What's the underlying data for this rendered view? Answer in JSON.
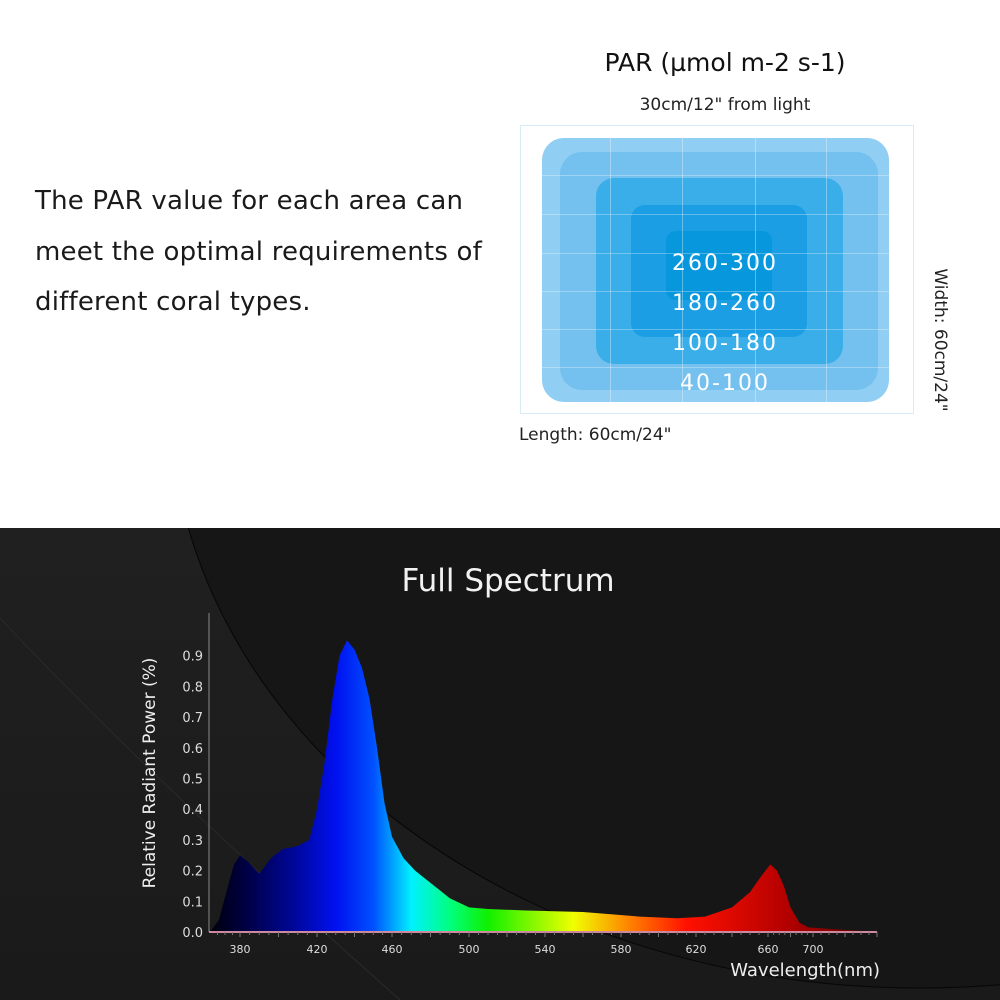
{
  "intro": {
    "lines": [
      "The PAR value for each area can",
      "meet the optimal requirements of",
      "different coral types."
    ]
  },
  "par": {
    "title": "PAR (µmol m-2 s-1)",
    "subtitle": "30cm/12\" from light",
    "zones": [
      {
        "range": "260-300",
        "color": "#0797dd"
      },
      {
        "range": "180-260",
        "color": "#1b9ee3"
      },
      {
        "range": "100-180",
        "color": "#3aaee8"
      },
      {
        "range": "40-100",
        "color": "#74c0ee"
      }
    ],
    "outer_color": "#91cef3",
    "length_label": "Length: 60cm/24\"",
    "width_label": "Width: 60cm/24\""
  },
  "chart_data": {
    "type": "area",
    "title": "Full Spectrum",
    "xlabel": "Wavelength(nm)",
    "ylabel": "Relative Radiant Power (%)",
    "xlim": [
      360,
      740
    ],
    "ylim": [
      0,
      1.0
    ],
    "x_ticks": [
      "380",
      "420",
      "460",
      "500",
      "540",
      "580",
      "620",
      "660",
      "700"
    ],
    "y_ticks": [
      "0.0",
      "0.1",
      "0.2",
      "0.3",
      "0.4",
      "0.5",
      "0.6",
      "0.7",
      "0.8",
      "0.9"
    ],
    "grid": false,
    "x": [
      360,
      366,
      372,
      376,
      380,
      384,
      390,
      396,
      402,
      410,
      416,
      420,
      424,
      428,
      432,
      436,
      440,
      444,
      448,
      452,
      456,
      460,
      466,
      472,
      480,
      490,
      500,
      510,
      530,
      560,
      590,
      610,
      625,
      640,
      650,
      656,
      662,
      668,
      674,
      680,
      688,
      696,
      710,
      740
    ],
    "y": [
      0.0,
      0.04,
      0.15,
      0.22,
      0.25,
      0.23,
      0.19,
      0.24,
      0.27,
      0.28,
      0.3,
      0.4,
      0.55,
      0.75,
      0.9,
      0.95,
      0.92,
      0.86,
      0.76,
      0.6,
      0.42,
      0.31,
      0.24,
      0.2,
      0.16,
      0.11,
      0.08,
      0.075,
      0.07,
      0.065,
      0.05,
      0.045,
      0.05,
      0.08,
      0.13,
      0.18,
      0.22,
      0.2,
      0.15,
      0.08,
      0.03,
      0.015,
      0.01,
      0.0
    ],
    "fill_gradient": [
      {
        "nm": 360,
        "color": "#00000a"
      },
      {
        "nm": 385,
        "color": "#00004a"
      },
      {
        "nm": 410,
        "color": "#0008a0"
      },
      {
        "nm": 430,
        "color": "#0010f0"
      },
      {
        "nm": 450,
        "color": "#0050ff"
      },
      {
        "nm": 470,
        "color": "#00f0ff"
      },
      {
        "nm": 490,
        "color": "#00ff80"
      },
      {
        "nm": 510,
        "color": "#10f000"
      },
      {
        "nm": 555,
        "color": "#f0ff00"
      },
      {
        "nm": 585,
        "color": "#ff8000"
      },
      {
        "nm": 615,
        "color": "#ff1000"
      },
      {
        "nm": 680,
        "color": "#b00000"
      },
      {
        "nm": 740,
        "color": "#500000"
      }
    ]
  }
}
